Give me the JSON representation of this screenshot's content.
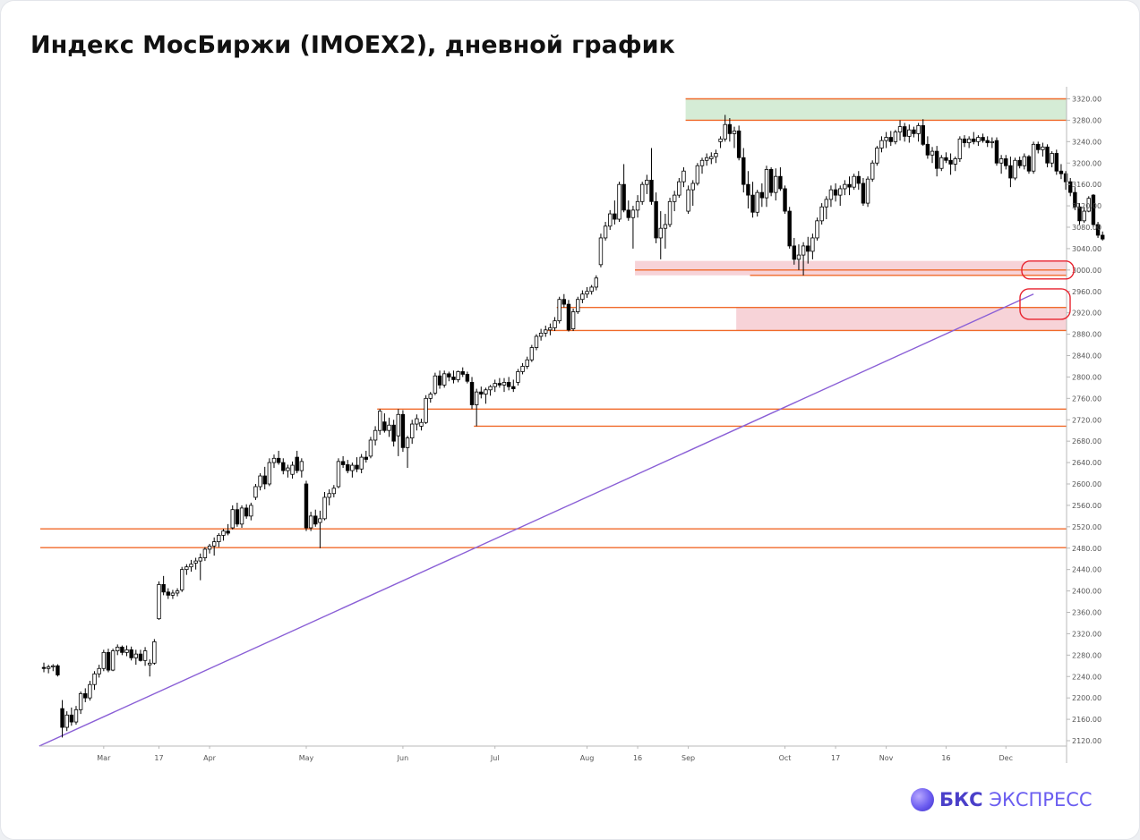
{
  "title": "Индекс МосБиржи (IMOEX2), дневной график",
  "logo": {
    "brand": "БКС",
    "product": "ЭКСПРЕСС",
    "icon": "bks-sphere-icon"
  },
  "colors": {
    "level_line": "#f06a2a",
    "resistance_zone": "#d5ecd6",
    "support_zone": "#f7d3d8",
    "trend_line": "#8a5fd6",
    "highlight_circle": "#e8222e",
    "candle_up": "#ffffff",
    "candle_down": "#000000"
  },
  "chart_data": {
    "type": "candlestick",
    "title": "Индекс МосБиржи (IMOEX2), дневной график",
    "y_axis": {
      "ticks": [
        3320,
        3280,
        3240,
        3200,
        3160,
        3120,
        3080,
        3040,
        3000,
        2960,
        2920,
        2880,
        2840,
        2800,
        2760,
        2720,
        2680,
        2640,
        2600,
        2560,
        2520,
        2480,
        2440,
        2400,
        2360,
        2320,
        2280,
        2240,
        2200,
        2160,
        2120
      ],
      "range": [
        2108,
        3334
      ],
      "side": "right"
    },
    "x_axis": {
      "labels": [
        "Mar",
        "17",
        "Apr",
        "May",
        "Jun",
        "Jul",
        "Aug",
        "16",
        "Sep",
        "Oct",
        "17",
        "Nov",
        "16",
        "Dec"
      ],
      "label_bar_index": [
        13,
        25,
        36,
        57,
        78,
        98,
        118,
        129,
        140,
        161,
        172,
        183,
        196,
        209
      ]
    },
    "candles": [
      [
        2257,
        2266,
        2248,
        2255
      ],
      [
        2255,
        2262,
        2246,
        2258
      ],
      [
        2258,
        2263,
        2250,
        2260
      ],
      [
        2260,
        2263,
        2240,
        2243
      ],
      [
        2180,
        2196,
        2126,
        2145
      ],
      [
        2145,
        2175,
        2138,
        2168
      ],
      [
        2168,
        2182,
        2148,
        2155
      ],
      [
        2155,
        2185,
        2150,
        2178
      ],
      [
        2178,
        2212,
        2170,
        2208
      ],
      [
        2208,
        2218,
        2192,
        2200
      ],
      [
        2200,
        2232,
        2195,
        2225
      ],
      [
        2225,
        2250,
        2215,
        2245
      ],
      [
        2245,
        2262,
        2238,
        2255
      ],
      [
        2255,
        2290,
        2250,
        2285
      ],
      [
        2285,
        2292,
        2248,
        2252
      ],
      [
        2252,
        2292,
        2250,
        2288
      ],
      [
        2288,
        2300,
        2280,
        2295
      ],
      [
        2295,
        2298,
        2280,
        2285
      ],
      [
        2285,
        2298,
        2278,
        2290
      ],
      [
        2290,
        2296,
        2270,
        2275
      ],
      [
        2275,
        2290,
        2262,
        2282
      ],
      [
        2282,
        2290,
        2268,
        2270
      ],
      [
        2270,
        2295,
        2260,
        2288
      ],
      [
        2262,
        2272,
        2240,
        2265
      ],
      [
        2265,
        2310,
        2262,
        2305
      ],
      [
        2348,
        2418,
        2346,
        2412
      ],
      [
        2412,
        2428,
        2392,
        2398
      ],
      [
        2398,
        2405,
        2385,
        2392
      ],
      [
        2392,
        2402,
        2385,
        2396
      ],
      [
        2396,
        2405,
        2390,
        2400
      ],
      [
        2402,
        2445,
        2398,
        2440
      ],
      [
        2440,
        2450,
        2430,
        2445
      ],
      [
        2445,
        2458,
        2436,
        2450
      ],
      [
        2452,
        2462,
        2440,
        2456
      ],
      [
        2456,
        2470,
        2420,
        2462
      ],
      [
        2462,
        2482,
        2456,
        2478
      ],
      [
        2478,
        2488,
        2470,
        2484
      ],
      [
        2484,
        2500,
        2466,
        2492
      ],
      [
        2492,
        2508,
        2482,
        2504
      ],
      [
        2504,
        2516,
        2494,
        2512
      ],
      [
        2512,
        2525,
        2504,
        2508
      ],
      [
        2518,
        2560,
        2515,
        2552
      ],
      [
        2552,
        2565,
        2520,
        2525
      ],
      [
        2525,
        2560,
        2518,
        2555
      ],
      [
        2555,
        2562,
        2535,
        2540
      ],
      [
        2540,
        2565,
        2532,
        2560
      ],
      [
        2575,
        2600,
        2570,
        2595
      ],
      [
        2595,
        2620,
        2588,
        2615
      ],
      [
        2615,
        2632,
        2590,
        2600
      ],
      [
        2600,
        2648,
        2596,
        2640
      ],
      [
        2640,
        2655,
        2630,
        2648
      ],
      [
        2648,
        2662,
        2636,
        2640
      ],
      [
        2640,
        2648,
        2618,
        2625
      ],
      [
        2625,
        2636,
        2612,
        2630
      ],
      [
        2618,
        2642,
        2610,
        2635
      ],
      [
        2650,
        2662,
        2620,
        2625
      ],
      [
        2625,
        2648,
        2612,
        2642
      ],
      [
        2600,
        2606,
        2512,
        2518
      ],
      [
        2518,
        2548,
        2512,
        2540
      ],
      [
        2540,
        2552,
        2520,
        2525
      ],
      [
        2528,
        2550,
        2480,
        2535
      ],
      [
        2535,
        2585,
        2532,
        2575
      ],
      [
        2575,
        2590,
        2560,
        2582
      ],
      [
        2582,
        2598,
        2575,
        2592
      ],
      [
        2595,
        2648,
        2592,
        2642
      ],
      [
        2642,
        2652,
        2630,
        2636
      ],
      [
        2636,
        2645,
        2620,
        2625
      ],
      [
        2625,
        2640,
        2612,
        2635
      ],
      [
        2635,
        2650,
        2622,
        2628
      ],
      [
        2628,
        2656,
        2620,
        2650
      ],
      [
        2650,
        2662,
        2640,
        2646
      ],
      [
        2652,
        2688,
        2648,
        2682
      ],
      [
        2682,
        2708,
        2672,
        2700
      ],
      [
        2700,
        2740,
        2692,
        2736
      ],
      [
        2716,
        2732,
        2696,
        2700
      ],
      [
        2700,
        2724,
        2688,
        2710
      ],
      [
        2710,
        2720,
        2670,
        2680
      ],
      [
        2690,
        2740,
        2652,
        2730
      ],
      [
        2730,
        2738,
        2660,
        2668
      ],
      [
        2668,
        2690,
        2630,
        2686
      ],
      [
        2686,
        2720,
        2675,
        2712
      ],
      [
        2712,
        2730,
        2700,
        2722
      ],
      [
        2708,
        2722,
        2700,
        2715
      ],
      [
        2715,
        2766,
        2712,
        2760
      ],
      [
        2760,
        2772,
        2752,
        2768
      ],
      [
        2770,
        2808,
        2766,
        2802
      ],
      [
        2802,
        2812,
        2778,
        2785
      ],
      [
        2785,
        2812,
        2780,
        2806
      ],
      [
        2806,
        2810,
        2792,
        2800
      ],
      [
        2800,
        2812,
        2788,
        2795
      ],
      [
        2795,
        2812,
        2790,
        2810
      ],
      [
        2810,
        2818,
        2800,
        2805
      ],
      [
        2805,
        2810,
        2788,
        2792
      ],
      [
        2790,
        2800,
        2740,
        2748
      ],
      [
        2748,
        2778,
        2708,
        2772
      ],
      [
        2772,
        2782,
        2760,
        2768
      ],
      [
        2768,
        2780,
        2750,
        2776
      ],
      [
        2776,
        2785,
        2765,
        2782
      ],
      [
        2782,
        2795,
        2772,
        2788
      ],
      [
        2788,
        2798,
        2780,
        2785
      ],
      [
        2785,
        2798,
        2772,
        2790
      ],
      [
        2790,
        2800,
        2775,
        2782
      ],
      [
        2782,
        2795,
        2772,
        2778
      ],
      [
        2790,
        2815,
        2784,
        2810
      ],
      [
        2810,
        2826,
        2805,
        2820
      ],
      [
        2820,
        2838,
        2815,
        2832
      ],
      [
        2832,
        2860,
        2828,
        2855
      ],
      [
        2855,
        2880,
        2850,
        2876
      ],
      [
        2876,
        2890,
        2868,
        2882
      ],
      [
        2882,
        2896,
        2875,
        2888
      ],
      [
        2888,
        2900,
        2878,
        2892
      ],
      [
        2892,
        2912,
        2886,
        2905
      ],
      [
        2905,
        2950,
        2900,
        2945
      ],
      [
        2945,
        2955,
        2930,
        2936
      ],
      [
        2936,
        2944,
        2885,
        2888
      ],
      [
        2890,
        2928,
        2886,
        2922
      ],
      [
        2922,
        2950,
        2918,
        2945
      ],
      [
        2945,
        2962,
        2938,
        2955
      ],
      [
        2955,
        2968,
        2948,
        2960
      ],
      [
        2960,
        2972,
        2954,
        2968
      ],
      [
        2968,
        2990,
        2962,
        2985
      ],
      [
        3010,
        3068,
        3005,
        3060
      ],
      [
        3060,
        3090,
        3055,
        3082
      ],
      [
        3082,
        3112,
        3075,
        3105
      ],
      [
        3105,
        3130,
        3085,
        3095
      ],
      [
        3095,
        3165,
        3090,
        3160
      ],
      [
        3160,
        3198,
        3108,
        3112
      ],
      [
        3112,
        3130,
        3092,
        3098
      ],
      [
        3098,
        3120,
        3040,
        3112
      ],
      [
        3112,
        3140,
        3098,
        3128
      ],
      [
        3128,
        3165,
        3122,
        3160
      ],
      [
        3160,
        3178,
        3142,
        3168
      ],
      [
        3168,
        3228,
        3122,
        3128
      ],
      [
        3128,
        3145,
        3050,
        3060
      ],
      [
        3060,
        3110,
        3020,
        3078
      ],
      [
        3078,
        3105,
        3040,
        3085
      ],
      [
        3085,
        3135,
        3080,
        3128
      ],
      [
        3128,
        3148,
        3110,
        3140
      ],
      [
        3140,
        3172,
        3135,
        3165
      ],
      [
        3165,
        3192,
        3155,
        3185
      ],
      [
        3110,
        3158,
        3105,
        3150
      ],
      [
        3150,
        3168,
        3120,
        3162
      ],
      [
        3162,
        3200,
        3158,
        3195
      ],
      [
        3195,
        3210,
        3180,
        3205
      ],
      [
        3205,
        3218,
        3195,
        3210
      ],
      [
        3208,
        3220,
        3198,
        3212
      ],
      [
        3212,
        3225,
        3200,
        3218
      ],
      [
        3240,
        3250,
        3228,
        3245
      ],
      [
        3245,
        3290,
        3240,
        3272
      ],
      [
        3272,
        3284,
        3240,
        3255
      ],
      [
        3255,
        3268,
        3228,
        3260
      ],
      [
        3260,
        3270,
        3205,
        3210
      ],
      [
        3210,
        3228,
        3145,
        3160
      ],
      [
        3160,
        3185,
        3115,
        3140
      ],
      [
        3140,
        3165,
        3098,
        3108
      ],
      [
        3108,
        3150,
        3100,
        3145
      ],
      [
        3145,
        3162,
        3118,
        3135
      ],
      [
        3135,
        3195,
        3118,
        3188
      ],
      [
        3188,
        3192,
        3138,
        3145
      ],
      [
        3145,
        3190,
        3130,
        3175
      ],
      [
        3175,
        3192,
        3148,
        3152
      ],
      [
        3152,
        3158,
        3105,
        3110
      ],
      [
        3110,
        3118,
        3040,
        3045
      ],
      [
        3045,
        3060,
        3010,
        3020
      ],
      [
        3020,
        3048,
        3000,
        3028
      ],
      [
        3028,
        3052,
        2990,
        3045
      ],
      [
        3045,
        3062,
        3012,
        3035
      ],
      [
        3035,
        3068,
        3020,
        3060
      ],
      [
        3060,
        3098,
        3055,
        3092
      ],
      [
        3092,
        3125,
        3085,
        3118
      ],
      [
        3118,
        3138,
        3095,
        3132
      ],
      [
        3132,
        3158,
        3118,
        3150
      ],
      [
        3150,
        3162,
        3128,
        3140
      ],
      [
        3140,
        3158,
        3120,
        3152
      ],
      [
        3152,
        3168,
        3140,
        3160
      ],
      [
        3160,
        3175,
        3140,
        3155
      ],
      [
        3155,
        3180,
        3150,
        3175
      ],
      [
        3175,
        3185,
        3150,
        3162
      ],
      [
        3162,
        3172,
        3120,
        3125
      ],
      [
        3125,
        3175,
        3118,
        3170
      ],
      [
        3170,
        3205,
        3165,
        3200
      ],
      [
        3200,
        3232,
        3195,
        3228
      ],
      [
        3228,
        3250,
        3220,
        3242
      ],
      [
        3242,
        3258,
        3228,
        3248
      ],
      [
        3248,
        3260,
        3232,
        3240
      ],
      [
        3240,
        3262,
        3235,
        3258
      ],
      [
        3258,
        3280,
        3242,
        3268
      ],
      [
        3268,
        3275,
        3240,
        3250
      ],
      [
        3250,
        3272,
        3238,
        3262
      ],
      [
        3262,
        3268,
        3248,
        3255
      ],
      [
        3255,
        3275,
        3240,
        3270
      ],
      [
        3270,
        3282,
        3232,
        3235
      ],
      [
        3235,
        3250,
        3208,
        3215
      ],
      [
        3215,
        3230,
        3200,
        3222
      ],
      [
        3222,
        3232,
        3175,
        3190
      ],
      [
        3190,
        3215,
        3185,
        3210
      ],
      [
        3210,
        3220,
        3200,
        3205
      ],
      [
        3205,
        3218,
        3178,
        3198
      ],
      [
        3198,
        3212,
        3185,
        3208
      ],
      [
        3208,
        3250,
        3202,
        3245
      ],
      [
        3245,
        3252,
        3230,
        3238
      ],
      [
        3238,
        3250,
        3228,
        3245
      ],
      [
        3245,
        3258,
        3235,
        3240
      ],
      [
        3240,
        3252,
        3232,
        3248
      ],
      [
        3248,
        3255,
        3238,
        3242
      ],
      [
        3242,
        3250,
        3230,
        3238
      ],
      [
        3238,
        3248,
        3228,
        3240
      ],
      [
        3242,
        3248,
        3195,
        3200
      ],
      [
        3200,
        3215,
        3180,
        3208
      ],
      [
        3208,
        3215,
        3188,
        3195
      ],
      [
        3195,
        3212,
        3155,
        3172
      ],
      [
        3172,
        3210,
        3168,
        3205
      ],
      [
        3205,
        3212,
        3190,
        3195
      ],
      [
        3195,
        3218,
        3188,
        3212
      ],
      [
        3212,
        3215,
        3180,
        3185
      ],
      [
        3185,
        3240,
        3180,
        3235
      ],
      [
        3235,
        3240,
        3218,
        3225
      ],
      [
        3225,
        3238,
        3212,
        3230
      ],
      [
        3230,
        3235,
        3192,
        3200
      ],
      [
        3200,
        3222,
        3192,
        3218
      ],
      [
        3218,
        3225,
        3178,
        3185
      ],
      [
        3185,
        3198,
        3170,
        3180
      ],
      [
        3180,
        3185,
        3150,
        3165
      ],
      [
        3165,
        3172,
        3138,
        3145
      ],
      [
        3145,
        3155,
        3112,
        3118
      ],
      [
        3118,
        3125,
        3085,
        3092
      ],
      [
        3092,
        3118,
        3088,
        3110
      ],
      [
        3110,
        3138,
        3108,
        3134
      ],
      [
        3140,
        3142,
        3080,
        3085
      ],
      [
        3085,
        3090,
        3060,
        3065
      ],
      [
        3065,
        3072,
        3055,
        3058
      ]
    ],
    "horizontal_levels": [
      {
        "price": 3320,
        "from_bar": 140
      },
      {
        "price": 3280,
        "from_bar": 140
      },
      {
        "price": 3000,
        "from_bar": 129
      },
      {
        "price": 2990,
        "from_bar": 154
      },
      {
        "price": 2930,
        "from_bar": 112
      },
      {
        "price": 2887,
        "from_bar": 110
      },
      {
        "price": 2740,
        "from_bar": 73
      },
      {
        "price": 2708,
        "from_bar": 94
      },
      {
        "price": 2516,
        "from_bar": 0
      },
      {
        "price": 2481,
        "from_bar": 0
      }
    ],
    "zones": [
      {
        "kind": "resistance",
        "low": 3280,
        "high": 3320,
        "from_bar": 140
      },
      {
        "kind": "support",
        "low": 2990,
        "high": 3017,
        "from_bar": 129
      },
      {
        "kind": "support",
        "low": 2887,
        "high": 2930,
        "from_bar": 151
      }
    ],
    "trend_line": {
      "from": {
        "bar": -1,
        "price": 2110
      },
      "to": {
        "bar": 215,
        "price": 2955
      }
    },
    "highlights": [
      {
        "shape": "circle",
        "center_price": 3000,
        "note": "callout on 3000 level"
      },
      {
        "shape": "circle",
        "center_price": 2938,
        "note": "callout on trendline/zone intersection"
      }
    ]
  }
}
